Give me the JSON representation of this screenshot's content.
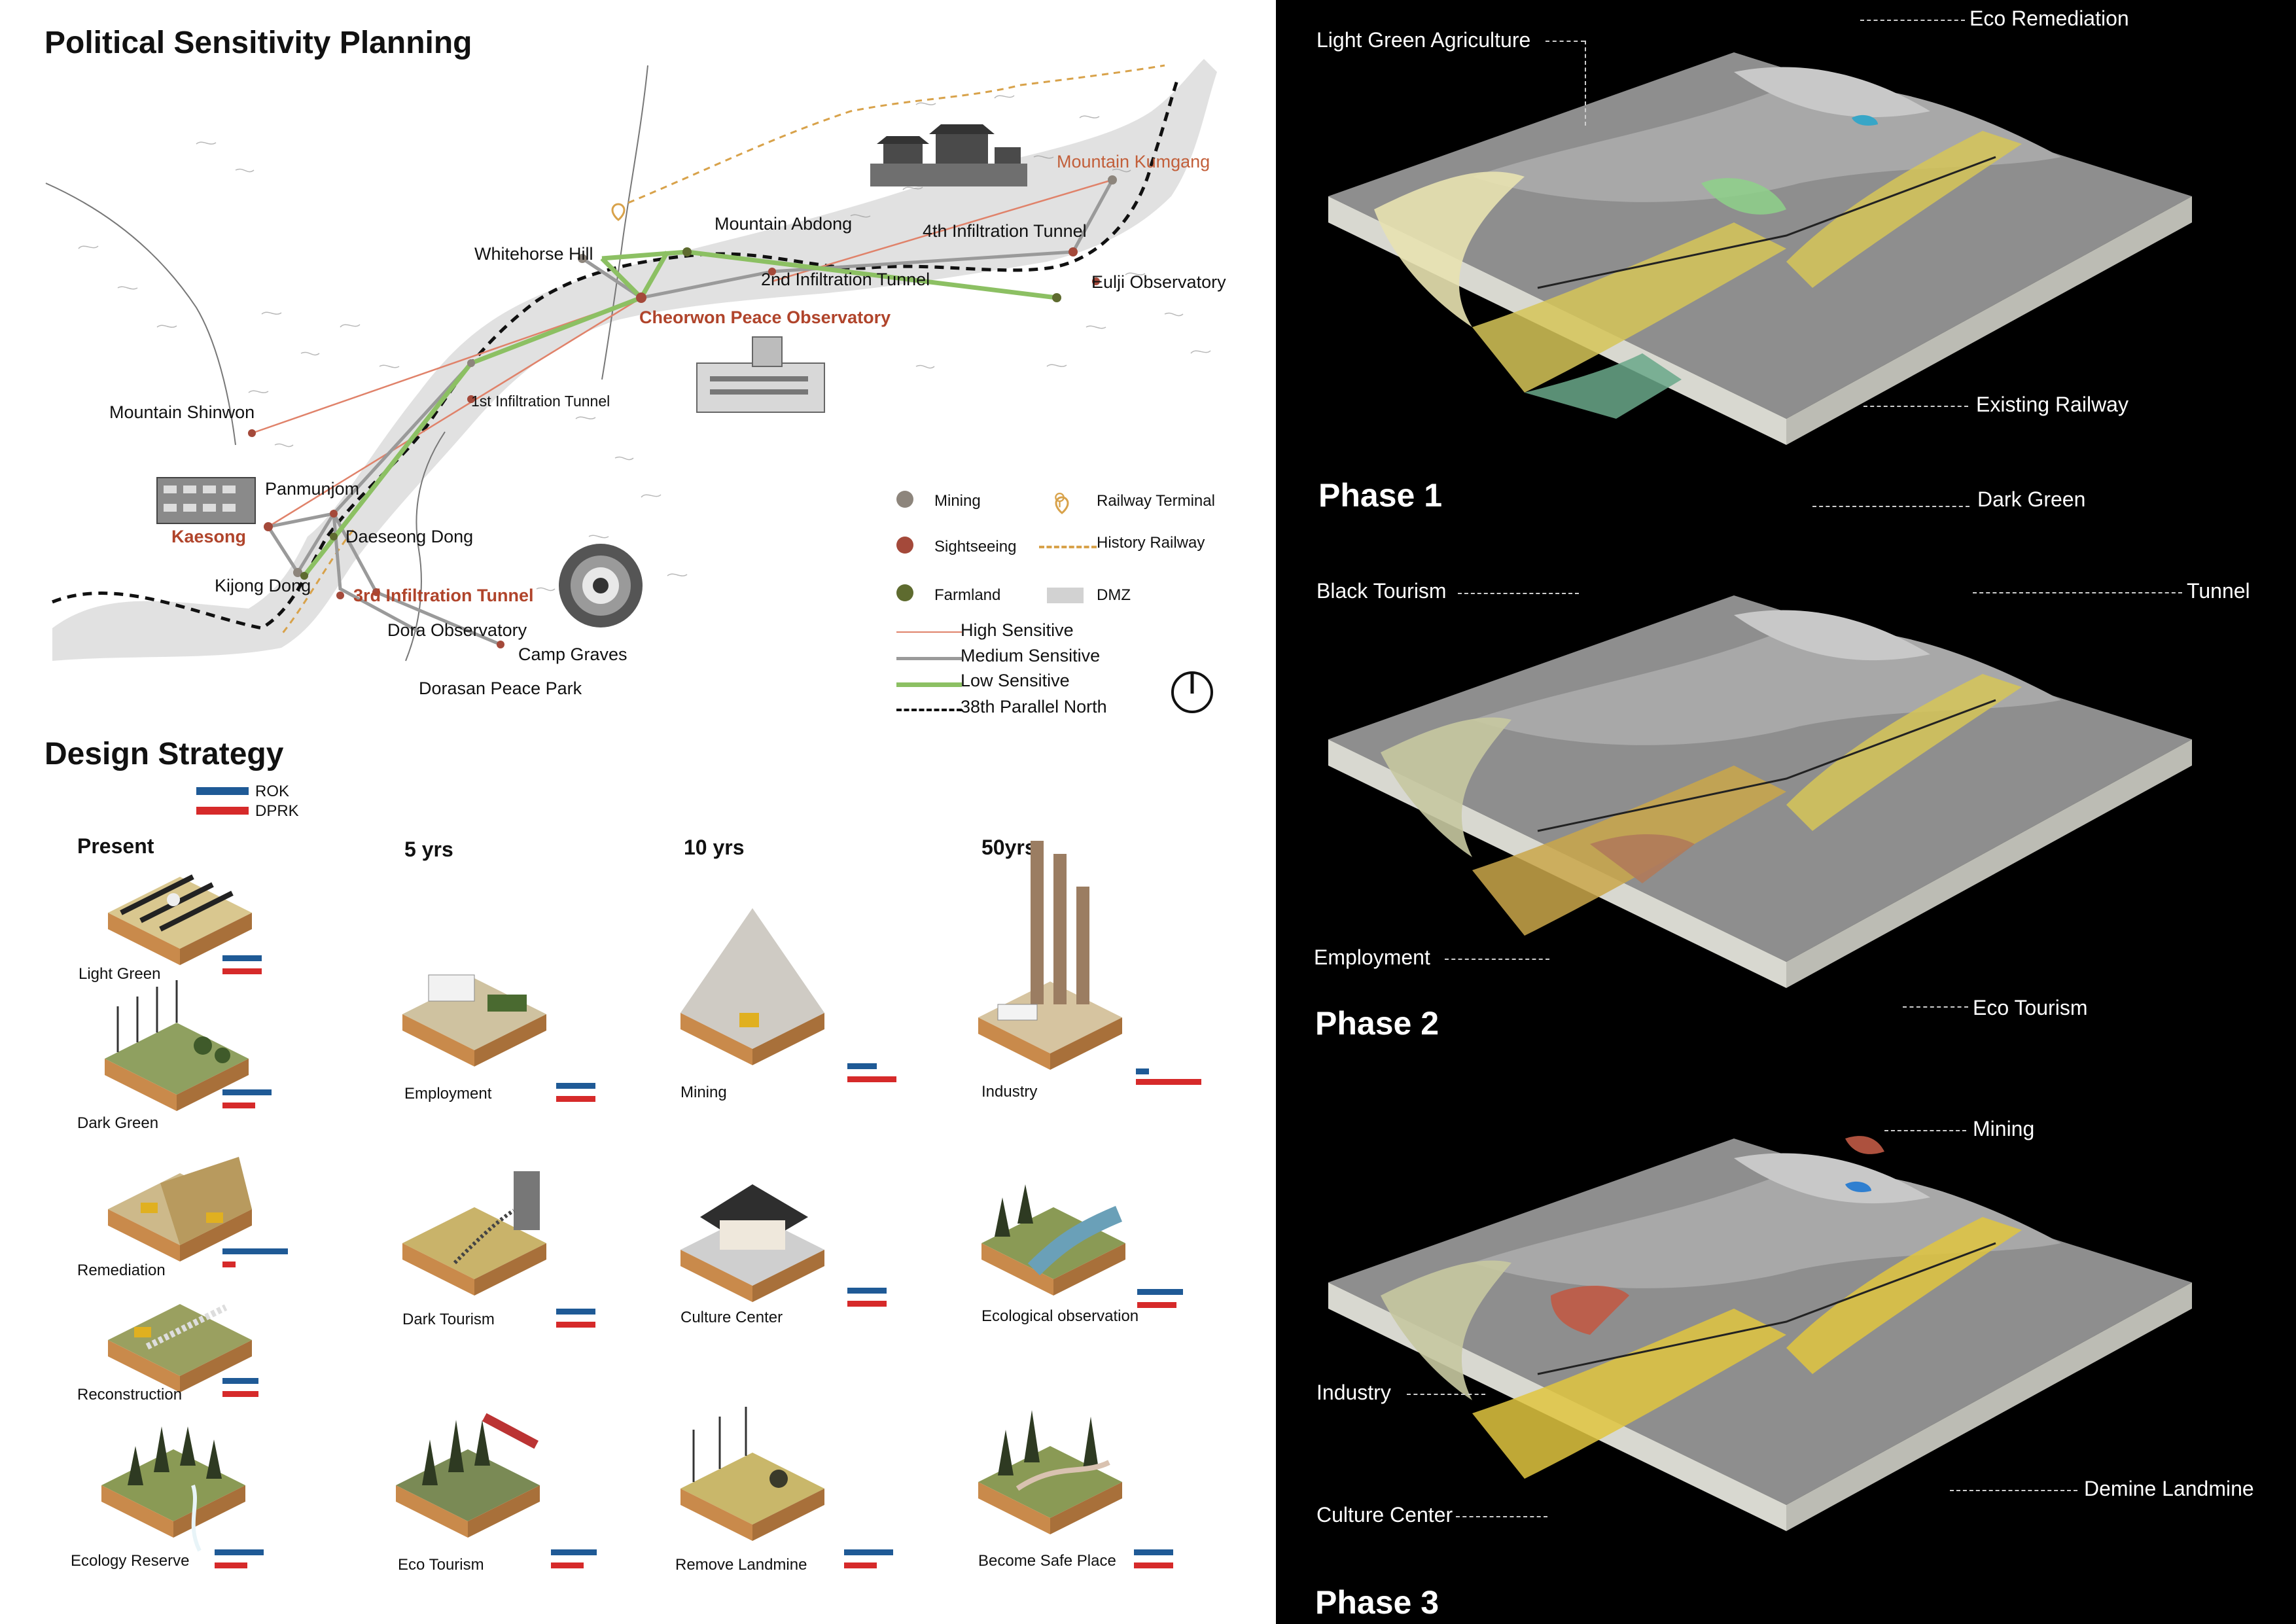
{
  "planning": {
    "title": "Political Sensitivity Planning",
    "places": {
      "mountain_kumgang": "Mountain Kumgang",
      "fourth_tunnel": "4th Infiltration Tunnel",
      "mountain_abdong": "Mountain Abdong",
      "whitehorse_hill": "Whitehorse Hill",
      "second_tunnel": "2nd Infiltration Tunnel",
      "eulji": "Eulji Observatory",
      "cheorwon": "Cheorwon Peace Observatory",
      "first_tunnel": "1st Infiltration Tunnel",
      "shinwon": "Mountain Shinwon",
      "panmunjom": "Panmunjom",
      "kaesong": "Kaesong",
      "daeseong": "Daeseong Dong",
      "kijong": "Kijong Dong",
      "third_tunnel": "3rd Infiltration Tunnel",
      "dora": "Dora Observatory",
      "camp_graves": "Camp Graves",
      "dorasan": "Dorasan Peace Park"
    },
    "legend": {
      "mining": "Mining",
      "sightseeing": "Sightseeing",
      "farmland": "Farmland",
      "railway_terminal": "Railway Terminal",
      "history_railway": "History Railway",
      "dmz": "DMZ",
      "high": "High Sensitive",
      "medium": "Medium Sensitive",
      "low": "Low Sensitive",
      "parallel": "38th Parallel North"
    },
    "colors": {
      "mining": "#8d857c",
      "sightseeing": "#a4493a",
      "farmland": "#5e6b2f",
      "high": "#e0826a",
      "medium": "#9a9a9a",
      "low": "#8cc063",
      "railway": "#d8a24a"
    }
  },
  "strategy": {
    "title": "Design Strategy",
    "flag_legend": {
      "rok": "ROK",
      "dprk": "DPRK"
    },
    "columns": [
      "Present",
      "5 yrs",
      "10 yrs",
      "50yrs"
    ],
    "tiles": {
      "light_green": {
        "label": "Light Green",
        "rok": 0.6,
        "dprk": 0.6
      },
      "dark_green": {
        "label": "Dark Green",
        "rok": 0.75,
        "dprk": 0.5
      },
      "remediation": {
        "label": "Remediation",
        "rok": 1.0,
        "dprk": 0.2
      },
      "reconstruction": {
        "label": "Reconstruction",
        "rok": 0.55,
        "dprk": 0.55
      },
      "ecology_reserve": {
        "label": "Ecology Reserve",
        "rok": 0.75,
        "dprk": 0.5
      },
      "employment": {
        "label": "Employment",
        "rok": 0.6,
        "dprk": 0.6
      },
      "dark_tourism": {
        "label": "Dark Tourism",
        "rok": 0.6,
        "dprk": 0.6
      },
      "eco_tourism": {
        "label": "Eco Tourism",
        "rok": 0.7,
        "dprk": 0.5
      },
      "mining": {
        "label": "Mining",
        "rok": 0.45,
        "dprk": 0.75
      },
      "culture_center": {
        "label": "Culture Center",
        "rok": 0.6,
        "dprk": 0.6
      },
      "remove_landmine": {
        "label": "Remove Landmine",
        "rok": 0.75,
        "dprk": 0.5
      },
      "industry": {
        "label": "Industry",
        "rok": 0.2,
        "dprk": 1.0
      },
      "ecological_observation": {
        "label": "Ecological observation",
        "rok": 0.7,
        "dprk": 0.6
      },
      "become_safe_place": {
        "label": "Become Safe Place",
        "rok": 0.6,
        "dprk": 0.6
      }
    }
  },
  "phases": [
    {
      "title": "Phase 1",
      "callouts": {
        "a": "Light Green Agriculture",
        "b": "Eco Remediation",
        "c": "Existing Railway",
        "d": "Dark Green"
      }
    },
    {
      "title": "Phase  2",
      "callouts": {
        "a": "Black Tourism",
        "b": "Tunnel",
        "c": "Employment",
        "d": "Eco Tourism"
      }
    },
    {
      "title": "Phase 3",
      "callouts": {
        "a": "Mining",
        "b": "Industry",
        "c": "Culture Center",
        "d": "Demine Landmine"
      }
    }
  ]
}
